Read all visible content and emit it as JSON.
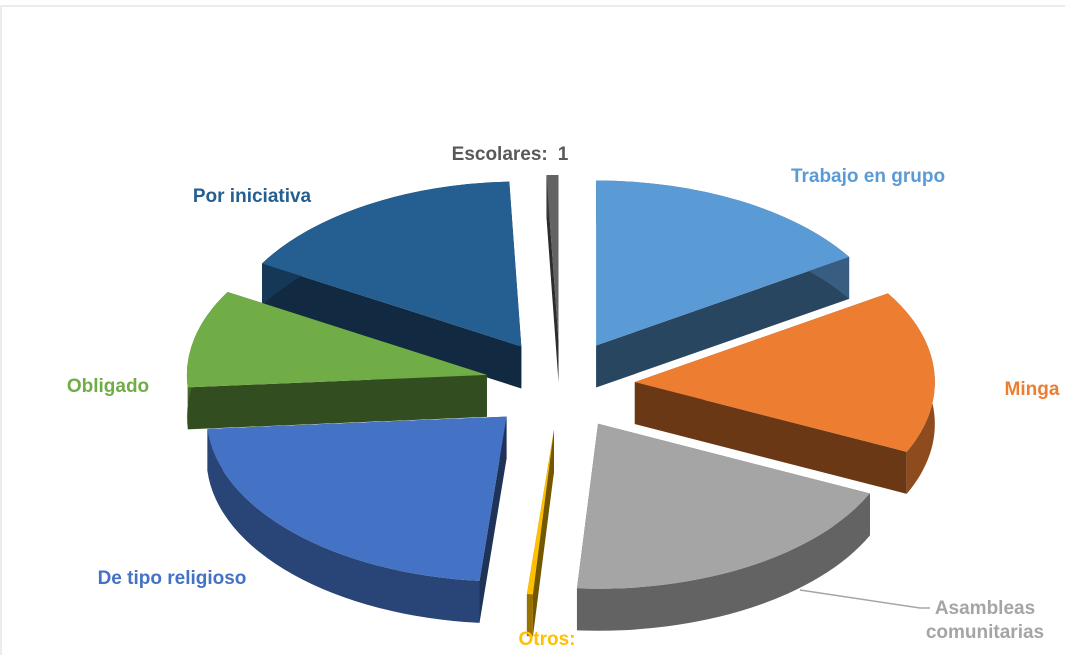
{
  "chart_data": {
    "type": "pie3d",
    "categories": [
      "Trabajo en grupo",
      "Minga",
      "Asambleas comunitarias",
      "Otros:",
      "De tipo religioso",
      "Obligado",
      "Por iniciativa",
      "Escolares:"
    ],
    "values": [
      25,
      25,
      30,
      0.5,
      35,
      15,
      25,
      1
    ],
    "value_labels": [
      null,
      null,
      null,
      null,
      null,
      null,
      null,
      "1"
    ],
    "colors": [
      "#5b9bd5",
      "#ed7d31",
      "#a5a5a5",
      "#ffc000",
      "#4472c4",
      "#70ad47",
      "#255e91",
      "#636363"
    ]
  }
}
